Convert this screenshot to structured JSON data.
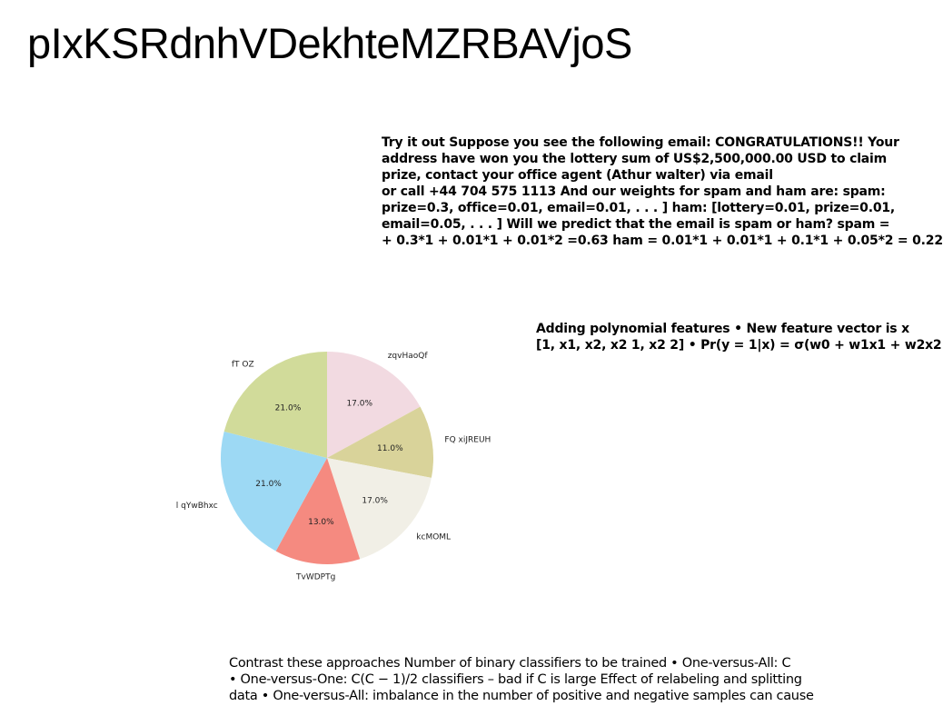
{
  "page": {
    "title": "pIxKSRdnhVDekhteMZRBAVjoS"
  },
  "spam_example": {
    "lines": [
      "Try it out Suppose you see the following email: CONGRATULATIONS!! Your",
      "address have won you the lottery sum of US$2,500,000.00 USD to claim",
      "prize, contact your office agent (Athur walter) via email",
      "or call +44 704 575 1113 And our weights for spam and ham are: spam:",
      "prize=0.3, office=0.01, email=0.01, . . . ] ham: [lottery=0.01, prize=0.01,",
      "email=0.05, . . . ] Will we predict that the email is spam or ham? spam =",
      "+ 0.3*1 + 0.01*1 + 0.01*2 =0.63 ham = 0.01*1 + 0.01*1 + 0.1*1 + 0.05*2 = 0.22"
    ]
  },
  "polynomial": {
    "lines": [
      "Adding polynomial features • New feature vector is x",
      "[1, x1, x2, x2 1, x2 2] • Pr(y = 1|x) = σ(w0 + w1x1 + w2x2"
    ]
  },
  "contrast": {
    "lines": [
      "Contrast these approaches Number of binary classifiers to be trained • One-versus-All: C",
      "• One-versus-One: C(C − 1)/2 classifiers – bad if C is large Effect of relabeling and splitting",
      "data • One-versus-All: imbalance in the number of positive and negative samples can cause"
    ]
  },
  "chart_data": {
    "type": "pie",
    "categories": [
      "zqvHaoQf",
      "FQ xiJREUH",
      "kcMOML",
      "TvWDPTg",
      "l qYwBhxc",
      "fT OZ"
    ],
    "values": [
      17.0,
      11.0,
      17.0,
      13.0,
      21.0,
      21.0
    ],
    "labels": [
      "17.0%",
      "11.0%",
      "17.0%",
      "13.0%",
      "21.0%",
      "21.0%"
    ],
    "colors": [
      "#f2dae1",
      "#d9d39a",
      "#f1efe6",
      "#f58a80",
      "#9dd9f4",
      "#d1db9a"
    ],
    "start_angle_deg": 90,
    "direction": "clockwise"
  }
}
